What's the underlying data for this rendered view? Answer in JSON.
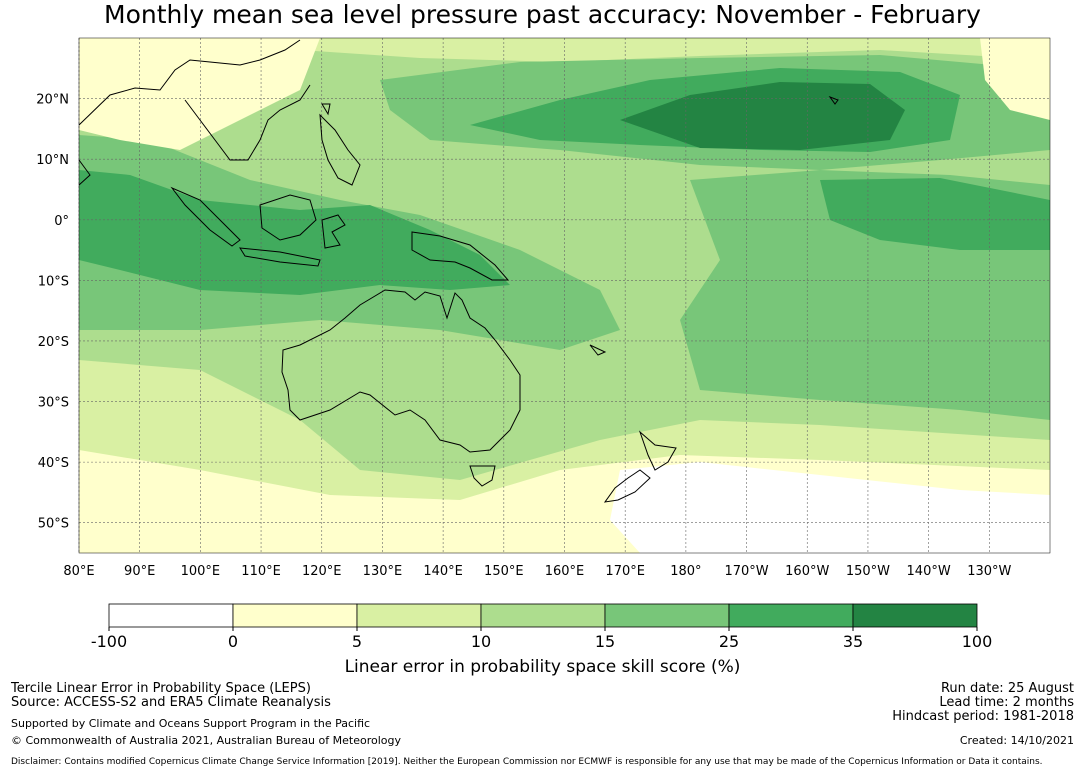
{
  "title": "Monthly mean sea level pressure past accuracy: November - February",
  "map": {
    "lat_ticks": [
      "20°N",
      "10°N",
      "0°",
      "10°S",
      "20°S",
      "30°S",
      "40°S",
      "50°S"
    ],
    "lon_ticks": [
      "80°E",
      "90°E",
      "100°E",
      "110°E",
      "120°E",
      "130°E",
      "140°E",
      "150°E",
      "160°E",
      "170°E",
      "180°",
      "170°W",
      "160°W",
      "150°W",
      "140°W",
      "130°W"
    ],
    "extent": {
      "lon_min": 80,
      "lon_max": 240,
      "lat_min": -55,
      "lat_max": 30
    }
  },
  "chart_data": {
    "type": "heatmap",
    "title": "Monthly mean sea level pressure past accuracy: November - February",
    "colorbar_label": "Linear error in probability space skill score (%)",
    "colorbar_ticks": [
      "-100",
      "0",
      "5",
      "10",
      "15",
      "25",
      "35",
      "100"
    ],
    "bins": [
      {
        "from": -100,
        "to": 0,
        "color": "#ffffff"
      },
      {
        "from": 0,
        "to": 5,
        "color": "#ffffcc"
      },
      {
        "from": 5,
        "to": 10,
        "color": "#d9f0a3"
      },
      {
        "from": 10,
        "to": 15,
        "color": "#addd8e"
      },
      {
        "from": 15,
        "to": 25,
        "color": "#78c679"
      },
      {
        "from": 25,
        "to": 35,
        "color": "#41ab5d"
      },
      {
        "from": 35,
        "to": 100,
        "color": "#238443"
      }
    ]
  },
  "footer": {
    "leps": "Tercile Linear Error in Probability Space (LEPS)",
    "source": "Source: ACCESS-S2 and ERA5 Climate Reanalysis",
    "support": "Supported by Climate and Oceans Support Program in the Pacific",
    "copyright": "© Commonwealth of Australia 2021, Australian Bureau of Meteorology",
    "run_date": "Run date: 25 August",
    "lead_time": "Lead time: 2 months",
    "hindcast": "Hindcast period: 1981-2018",
    "created": "Created: 14/10/2021",
    "disclaimer": "Disclaimer: Contains modified Copernicus Climate Change Service Information [2019]. Neither the European Commission nor ECMWF is responsible for any use that may be made of the Copernicus Information or Data it contains."
  }
}
